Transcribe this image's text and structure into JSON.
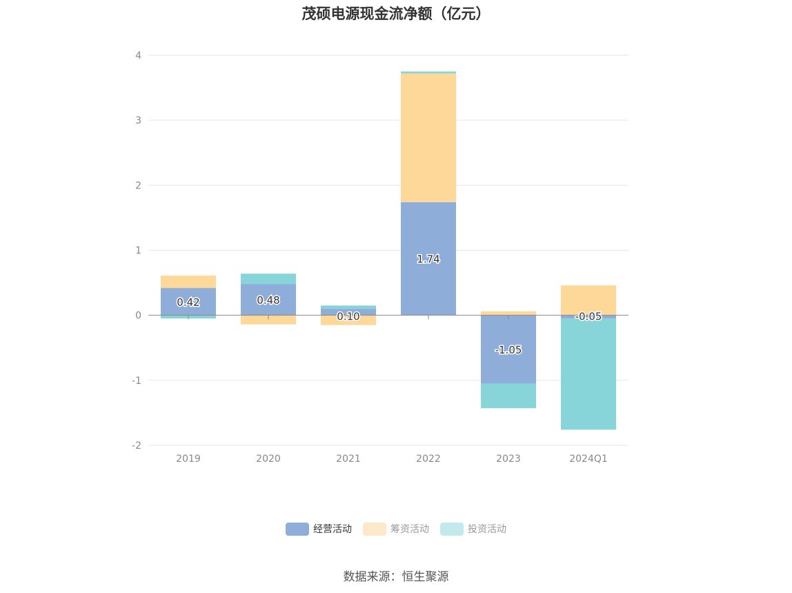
{
  "chart_data": {
    "type": "bar",
    "stacked": true,
    "title": "茂硕电源现金流净额（亿元）",
    "categories": [
      "2019",
      "2020",
      "2021",
      "2022",
      "2023",
      "2024Q1"
    ],
    "ylim": [
      -2,
      4
    ],
    "yticks": [
      4,
      3,
      2,
      1,
      0,
      -1,
      -2
    ],
    "grid": true,
    "legend_position": "bottom",
    "series": [
      {
        "name": "经营活动",
        "color": "#8eadd9",
        "values": [
          0.42,
          0.48,
          0.1,
          1.74,
          -1.05,
          -0.05
        ],
        "labels": [
          "0.42",
          "0.48",
          "0.10",
          "1.74",
          "-1.05",
          "-0.05"
        ]
      },
      {
        "name": "筹资活动",
        "color": "#fed899",
        "values": [
          0.19,
          -0.14,
          -0.15,
          1.98,
          0.06,
          0.46
        ]
      },
      {
        "name": "投资活动",
        "color": "#87d4d9",
        "values": [
          -0.05,
          0.16,
          0.05,
          0.03,
          -0.38,
          -1.71
        ]
      }
    ]
  },
  "legend": {
    "items": [
      {
        "label": "经营活动",
        "color": "#8eadd9",
        "active": true
      },
      {
        "label": "筹资活动",
        "color": "#fde8c9",
        "active": false
      },
      {
        "label": "投资活动",
        "color": "#c2e9ec",
        "active": false
      }
    ]
  },
  "source": "数据来源：恒生聚源"
}
